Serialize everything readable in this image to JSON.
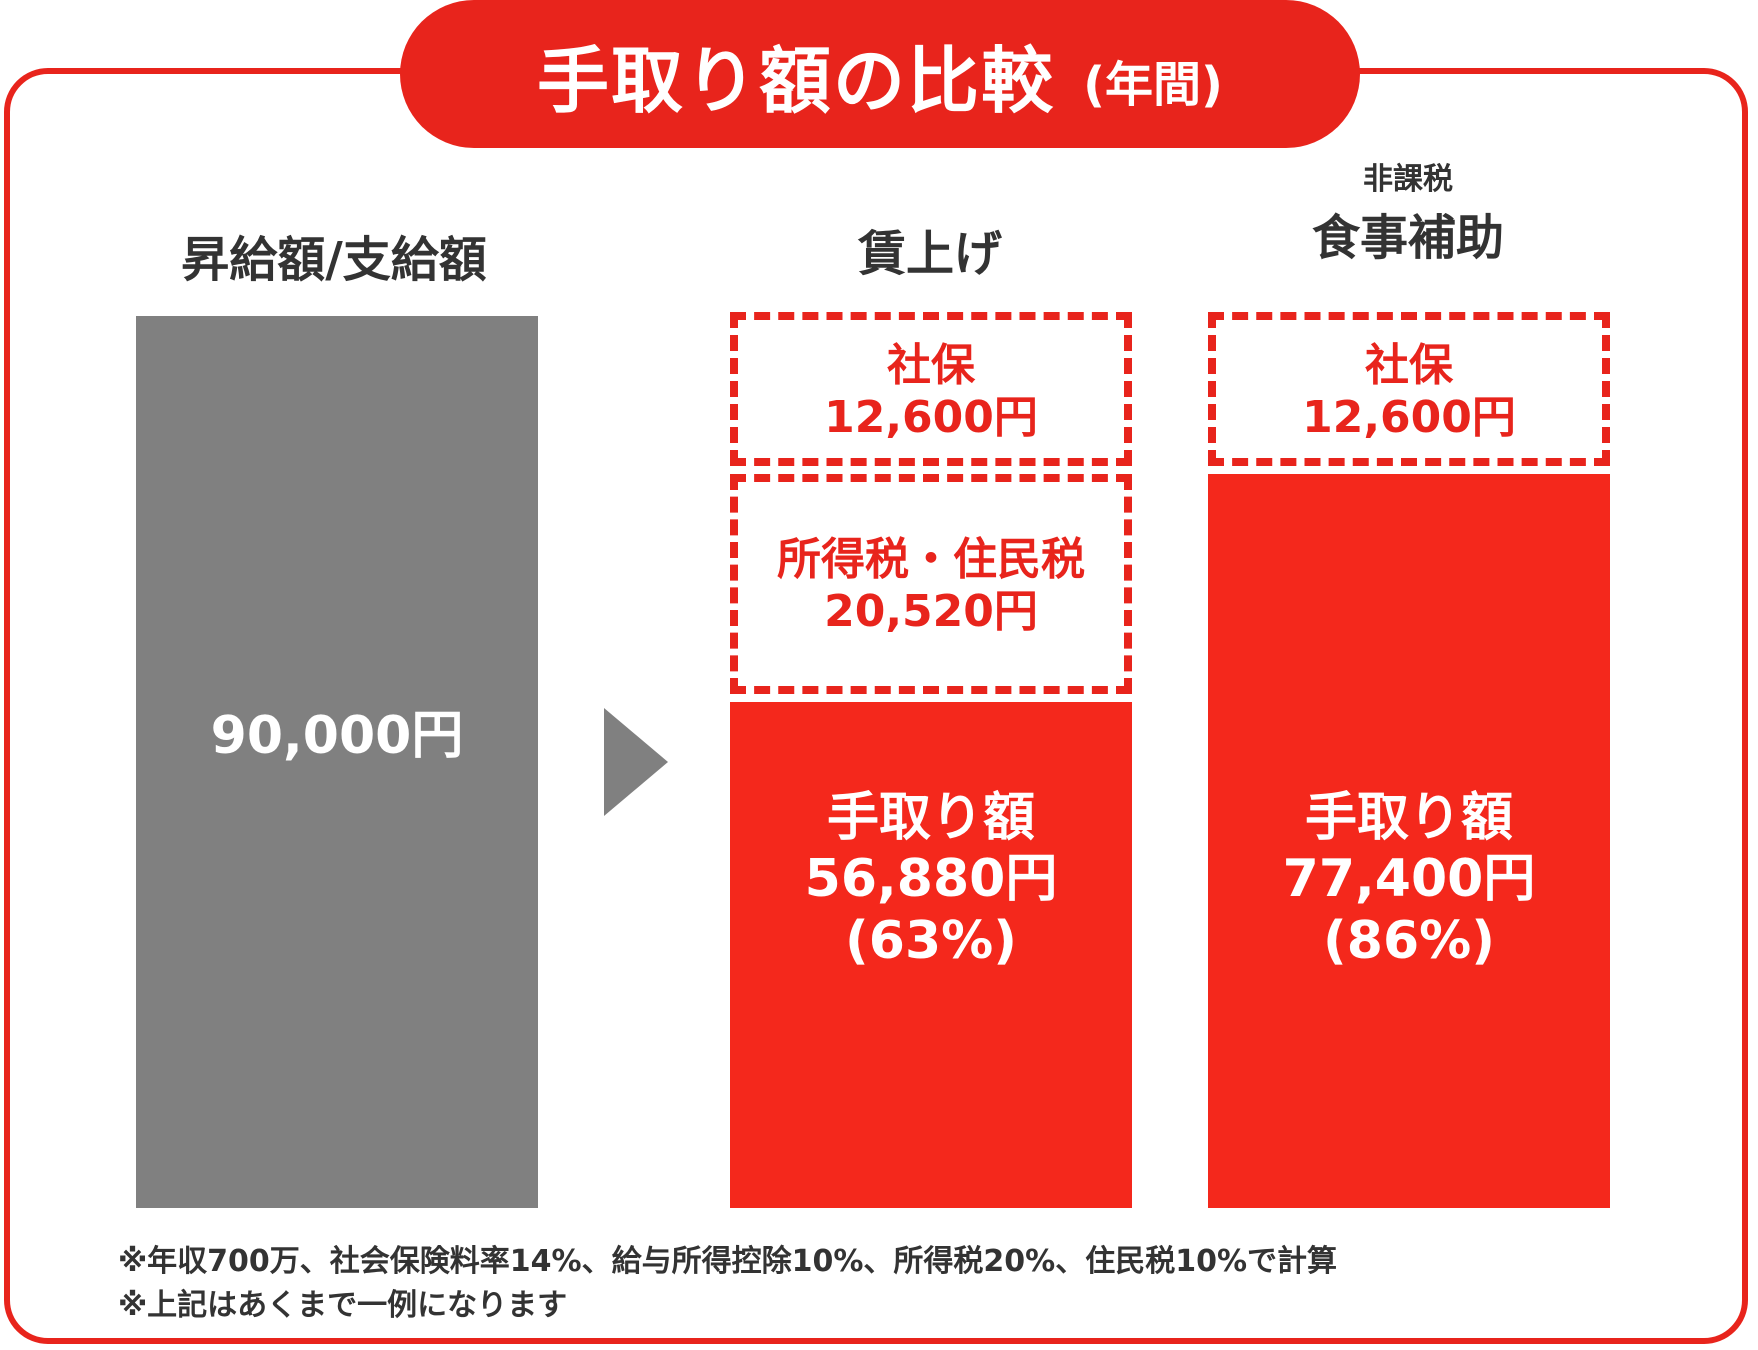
{
  "title": {
    "main": "手取り額の比較",
    "sub": "(年間)"
  },
  "columns": {
    "base": {
      "header": "昇給額/支給額",
      "amount": "90,000円"
    },
    "wage": {
      "header": "賃上げ",
      "social": {
        "label": "社保",
        "amount": "12,600円"
      },
      "tax": {
        "label": "所得税・住民税",
        "amount": "20,520円"
      },
      "net": {
        "label": "手取り額",
        "amount": "56,880円",
        "pct": "(63%)"
      }
    },
    "meal": {
      "sub_header": "非課税",
      "header": "食事補助",
      "social": {
        "label": "社保",
        "amount": "12,600円"
      },
      "net": {
        "label": "手取り額",
        "amount": "77,400円",
        "pct": "(86%)"
      }
    }
  },
  "notes": [
    "※年収700万、社会保険料率14%、給与所得控除10%、所得税20%、住民税10%で計算",
    "※上記はあくまで一例になります"
  ],
  "colors": {
    "accent": "#e8241c",
    "bar_red": "#f4281c",
    "bar_gray": "#808080",
    "text": "#333333"
  },
  "chart_data": {
    "type": "bar",
    "stacked": true,
    "title": "手取り額の比較 (年間)",
    "categories": [
      "昇給額/支給額",
      "賃上げ",
      "食事補助"
    ],
    "series": [
      {
        "name": "支給額",
        "values": [
          90000,
          0,
          0
        ]
      },
      {
        "name": "手取り額",
        "values": [
          0,
          56880,
          77400
        ]
      },
      {
        "name": "所得税・住民税",
        "values": [
          0,
          20520,
          0
        ]
      },
      {
        "name": "社保",
        "values": [
          0,
          12600,
          12600
        ]
      }
    ],
    "percent_labels": [
      "",
      "63%",
      "86%"
    ],
    "unit": "円",
    "ylim": [
      0,
      90000
    ]
  }
}
